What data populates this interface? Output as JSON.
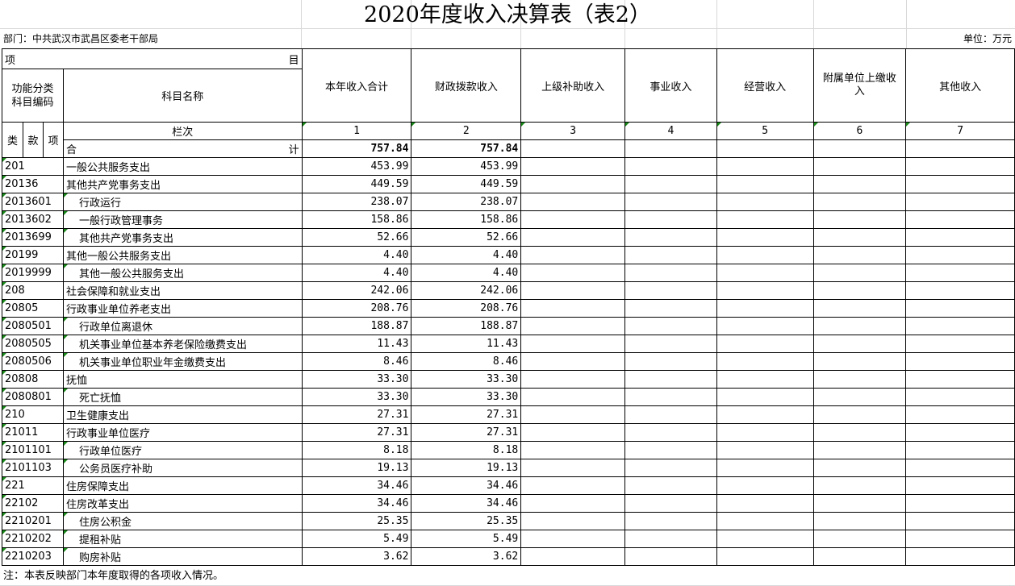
{
  "title": "2020年度收入决算表（表2）",
  "department": "部门：中共武汉市武昌区委老干部局",
  "unit": "单位：万元",
  "header": {
    "item_left": "项",
    "item_right": "目",
    "func_code": "功能分类科目编码",
    "subject_name": "科目名称",
    "cols": [
      "本年收入合计",
      "财政拨款收入",
      "上级补助收入",
      "事业收入",
      "经营收入",
      "附属单位上缴收入",
      "其他收入"
    ],
    "lei": "类",
    "kuan": "款",
    "xiang": "项",
    "lanci": "栏次",
    "col_nums": [
      "1",
      "2",
      "3",
      "4",
      "5",
      "6",
      "7"
    ],
    "total_left": "合",
    "total_right": "计",
    "total_values": [
      "757.84",
      "757.84",
      "",
      "",
      "",
      "",
      ""
    ]
  },
  "rows": [
    {
      "code": "201",
      "name": "一般公共服务支出",
      "v1": "453.99",
      "v2": "453.99"
    },
    {
      "code": "20136",
      "name": "其他共产党事务支出",
      "v1": "449.59",
      "v2": "449.59"
    },
    {
      "code": "2013601",
      "name": "行政运行",
      "v1": "238.07",
      "v2": "238.07"
    },
    {
      "code": "2013602",
      "name": "一般行政管理事务",
      "v1": "158.86",
      "v2": "158.86"
    },
    {
      "code": "2013699",
      "name": "其他共产党事务支出",
      "v1": "52.66",
      "v2": "52.66"
    },
    {
      "code": "20199",
      "name": "其他一般公共服务支出",
      "v1": "4.40",
      "v2": "4.40"
    },
    {
      "code": "2019999",
      "name": "其他一般公共服务支出",
      "v1": "4.40",
      "v2": "4.40"
    },
    {
      "code": "208",
      "name": "社会保障和就业支出",
      "v1": "242.06",
      "v2": "242.06"
    },
    {
      "code": "20805",
      "name": "行政事业单位养老支出",
      "v1": "208.76",
      "v2": "208.76"
    },
    {
      "code": "2080501",
      "name": "行政单位离退休",
      "v1": "188.87",
      "v2": "188.87"
    },
    {
      "code": "2080505",
      "name": "机关事业单位基本养老保险缴费支出",
      "v1": "11.43",
      "v2": "11.43"
    },
    {
      "code": "2080506",
      "name": "机关事业单位职业年金缴费支出",
      "v1": "8.46",
      "v2": "8.46"
    },
    {
      "code": "20808",
      "name": "抚恤",
      "v1": "33.30",
      "v2": "33.30"
    },
    {
      "code": "2080801",
      "name": "死亡抚恤",
      "v1": "33.30",
      "v2": "33.30"
    },
    {
      "code": "210",
      "name": "卫生健康支出",
      "v1": "27.31",
      "v2": "27.31"
    },
    {
      "code": "21011",
      "name": "行政事业单位医疗",
      "v1": "27.31",
      "v2": "27.31"
    },
    {
      "code": "2101101",
      "name": "行政单位医疗",
      "v1": "8.18",
      "v2": "8.18"
    },
    {
      "code": "2101103",
      "name": "公务员医疗补助",
      "v1": "19.13",
      "v2": "19.13"
    },
    {
      "code": "221",
      "name": "住房保障支出",
      "v1": "34.46",
      "v2": "34.46"
    },
    {
      "code": "22102",
      "name": "住房改革支出",
      "v1": "34.46",
      "v2": "34.46"
    },
    {
      "code": "2210201",
      "name": "住房公积金",
      "v1": "25.35",
      "v2": "25.35"
    },
    {
      "code": "2210202",
      "name": "提租补贴",
      "v1": "5.49",
      "v2": "5.49"
    },
    {
      "code": "2210203",
      "name": "购房补贴",
      "v1": "3.62",
      "v2": "3.62"
    }
  ],
  "note": "注：本表反映部门本年度取得的各项收入情况。"
}
